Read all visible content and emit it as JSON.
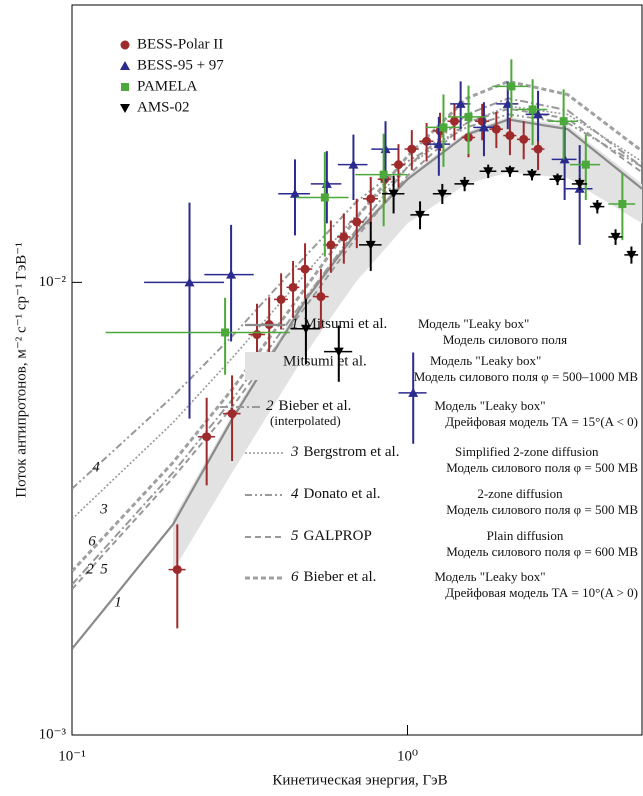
{
  "chart_data": {
    "type": "scatter",
    "xlabel": "Кинетическая энергия, ГэВ",
    "ylabel": "Поток антипротонов, м⁻² с⁻¹ ср⁻¹ ГэВ⁻¹",
    "xscale": "log",
    "yscale": "log",
    "xlim": [
      0.1,
      5
    ],
    "ylim": [
      0.001,
      0.041
    ],
    "xticks": [
      {
        "value": 0.1,
        "label": "10⁻¹"
      },
      {
        "value": 1,
        "label": "10⁰"
      }
    ],
    "yticks": [
      {
        "value": 0.001,
        "label": "10⁻³"
      },
      {
        "value": 0.01,
        "label": "10⁻²"
      }
    ],
    "series": [
      {
        "name": "BESS-Polar II",
        "kind": "points",
        "marker": "circle",
        "color": "#9e2a2b",
        "x": [
          0.206,
          0.252,
          0.3,
          0.356,
          0.387,
          0.42,
          0.456,
          0.495,
          0.552,
          0.591,
          0.646,
          0.706,
          0.777,
          0.855,
          0.94,
          1.03,
          1.14,
          1.25,
          1.38,
          1.52,
          1.67,
          1.84,
          2.02,
          2.22,
          2.45
        ],
        "values": [
          0.00232,
          0.00456,
          0.00513,
          0.00767,
          0.00807,
          0.00917,
          0.00975,
          0.0107,
          0.0093,
          0.0121,
          0.0126,
          0.0136,
          0.0153,
          0.0169,
          0.0182,
          0.0197,
          0.0205,
          0.0216,
          0.0227,
          0.0209,
          0.0227,
          0.0218,
          0.0211,
          0.0207,
          0.0197
        ],
        "yerr": [
          0.0006,
          0.001,
          0.0011,
          0.0013,
          0.0012,
          0.0013,
          0.0014,
          0.0015,
          0.0014,
          0.0016,
          0.0016,
          0.0017,
          0.0018,
          0.0019,
          0.002,
          0.002,
          0.002,
          0.0021,
          0.0021,
          0.002,
          0.0021,
          0.002,
          0.002,
          0.002,
          0.002
        ],
        "xerr": [
          0.012,
          0.015,
          0.018,
          0.02,
          0.02,
          0.02,
          0.02,
          0.025,
          0.03,
          0.03,
          0.03,
          0.035,
          0.04,
          0.04,
          0.045,
          0.05,
          0.055,
          0.06,
          0.065,
          0.07,
          0.08,
          0.085,
          0.09,
          0.1,
          0.11
        ]
      },
      {
        "name": "BESS-95 + 97",
        "kind": "points",
        "marker": "triangle-up",
        "color": "#2b2a8f",
        "x": [
          0.224,
          0.298,
          0.462,
          0.575,
          0.69,
          0.86,
          1.04,
          1.24,
          1.44,
          1.69,
          1.99,
          2.45,
          2.94,
          3.26
        ],
        "values": [
          0.01,
          0.0104,
          0.0157,
          0.0165,
          0.0182,
          0.0197,
          0.0057,
          0.0202,
          0.0248,
          0.022,
          0.0248,
          0.0235,
          0.0187,
          0.0161
        ],
        "yerr": [
          0.005,
          0.003,
          0.003,
          0.003,
          0.003,
          0.003,
          0.0013,
          0.003,
          0.003,
          0.003,
          0.003,
          0.003,
          0.0035,
          0.004
        ],
        "xerr": [
          0.06,
          0.05,
          0.05,
          0.06,
          0.07,
          0.08,
          0.1,
          0.1,
          0.1,
          0.12,
          0.15,
          0.2,
          0.25,
          0.3
        ]
      },
      {
        "name": "PAMELA",
        "kind": "points",
        "marker": "square",
        "color": "#4ca83a",
        "x": [
          0.286,
          0.567,
          0.849,
          1.28,
          1.52,
          2.04,
          2.36,
          2.92,
          3.4,
          4.37
        ],
        "values": [
          0.00775,
          0.0154,
          0.0173,
          0.022,
          0.0232,
          0.0271,
          0.0241,
          0.0227,
          0.0182,
          0.0149
        ],
        "yerr": [
          0.0015,
          0.004,
          0.004,
          0.004,
          0.004,
          0.004,
          0.004,
          0.004,
          0.003,
          0.0025
        ],
        "xerr": [
          0.16,
          0.1,
          0.15,
          0.15,
          0.2,
          0.25,
          0.25,
          0.3,
          0.35,
          0.4
        ]
      },
      {
        "name": "AMS-02",
        "kind": "points",
        "marker": "triangle-down",
        "color": "#000000",
        "x": [
          0.498,
          0.624,
          0.777,
          0.909,
          1.09,
          1.27,
          1.48,
          1.74,
          2.02,
          2.35,
          2.8,
          3.26,
          3.68,
          4.17,
          4.65
        ],
        "values": [
          0.0079,
          0.00703,
          0.0121,
          0.0157,
          0.0141,
          0.0157,
          0.0165,
          0.0176,
          0.0176,
          0.0173,
          0.0169,
          0.0165,
          0.0147,
          0.0126,
          0.0115
        ],
        "yerr": [
          0.0013,
          0.001,
          0.0015,
          0.0015,
          0.001,
          0.0008,
          0.0006,
          0.0006,
          0.0005,
          0.0005,
          0.0005,
          0.0005,
          0.0005,
          0.0005,
          0.0005
        ],
        "xerr": [
          0.05,
          0.06,
          0.06,
          0.07,
          0.07,
          0.08,
          0.1,
          0.1,
          0.12,
          0.14,
          0.15,
          0.17,
          0.18,
          0.2,
          0.22
        ]
      },
      {
        "name": "Mitsumi et al.",
        "kind": "band",
        "color": "#e2e2e2",
        "description": [
          "Модель \"Leaky box\"",
          "Модель силового поля φ = 500–1000 MB"
        ],
        "x": [
          0.2,
          0.3,
          0.5,
          0.7,
          1,
          1.5,
          2,
          3,
          5
        ],
        "y_low": [
          0.0023,
          0.0038,
          0.007,
          0.01,
          0.0135,
          0.0165,
          0.0175,
          0.017,
          0.0135
        ],
        "y_high": [
          0.003,
          0.0051,
          0.0094,
          0.013,
          0.0172,
          0.0215,
          0.0232,
          0.0222,
          0.0165
        ]
      },
      {
        "name": "Mitsumi et al.",
        "number": "1",
        "kind": "line",
        "dash": "solid",
        "color": "#8a8a8a",
        "description": [
          "Модель \"Leaky box\"",
          "Модель силового поля"
        ],
        "x": [
          0.1,
          0.2,
          0.3,
          0.5,
          0.7,
          1,
          1.5,
          2,
          3,
          5
        ],
        "values": [
          0.00155,
          0.00292,
          0.00498,
          0.0092,
          0.0128,
          0.0169,
          0.0212,
          0.0229,
          0.0218,
          0.0161
        ]
      },
      {
        "name": "Bieber et al.",
        "number": "2",
        "note": "(interpolated)",
        "kind": "line",
        "dash": "dashdot",
        "color": "#999999",
        "description": [
          "Модель \"Leaky box\"",
          "Дрейфовая модель ТА = 15°(A < 0)"
        ],
        "x": [
          0.1,
          0.2,
          0.3,
          0.5,
          0.7,
          1,
          1.5,
          2,
          3,
          5
        ],
        "values": [
          0.00215,
          0.0038,
          0.0055,
          0.0093,
          0.013,
          0.018,
          0.0235,
          0.0255,
          0.024,
          0.018
        ]
      },
      {
        "name": "Bergstrom et al.",
        "number": "3",
        "kind": "line",
        "dash": "dotted",
        "color": "#999999",
        "description": [
          "Simplified 2-zone diffusion",
          "Модель силового поля φ = 500 MB"
        ],
        "x": [
          0.1,
          0.2,
          0.3,
          0.5,
          0.7,
          1,
          1.5,
          2,
          3,
          5
        ],
        "values": [
          0.003,
          0.0049,
          0.0068,
          0.0105,
          0.014,
          0.018,
          0.0225,
          0.0245,
          0.0235,
          0.0185
        ]
      },
      {
        "name": "Donato et al.",
        "number": "4",
        "kind": "line",
        "dash": "dashdotdot",
        "color": "#999999",
        "description": [
          "2-zone diffusion",
          "Модель силового поля φ = 500 MB"
        ],
        "x": [
          0.1,
          0.2,
          0.3,
          0.5,
          0.7,
          1,
          1.5,
          2,
          3,
          5
        ],
        "values": [
          0.0035,
          0.0056,
          0.0076,
          0.0115,
          0.015,
          0.0185,
          0.022,
          0.0235,
          0.0225,
          0.018
        ]
      },
      {
        "name": "GALPROP",
        "number": "5",
        "kind": "line",
        "dash": "dashed",
        "color": "#999999",
        "description": [
          "Plain diffusion",
          "Модель силового поля φ = 600 MB"
        ],
        "x": [
          0.1,
          0.2,
          0.3,
          0.5,
          0.7,
          1,
          1.5,
          2,
          3,
          5
        ],
        "values": [
          0.0021,
          0.0037,
          0.0053,
          0.0089,
          0.0125,
          0.0172,
          0.0225,
          0.0242,
          0.023,
          0.0175
        ]
      },
      {
        "name": "Bieber et al.",
        "number": "6",
        "kind": "line",
        "dash": "dashed-thick",
        "color": "#a0a0a0",
        "description": [
          "Модель \"Leaky box\"",
          "Дрейфовая модель ТА = 10°(A > 0)"
        ],
        "x": [
          0.1,
          0.2,
          0.3,
          0.5,
          0.7,
          1,
          1.5,
          2,
          3,
          5
        ],
        "values": [
          0.0023,
          0.004,
          0.0058,
          0.0098,
          0.0138,
          0.019,
          0.0255,
          0.0278,
          0.026,
          0.0195
        ]
      }
    ]
  }
}
